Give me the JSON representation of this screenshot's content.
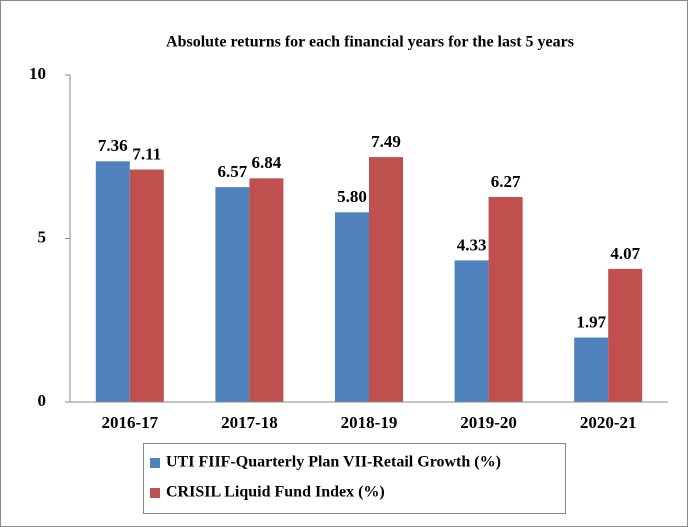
{
  "chart_data": {
    "type": "bar",
    "title": "Absolute returns for each financial years for the last 5 years",
    "categories": [
      "2016-17",
      "2017-18",
      "2018-19",
      "2019-20",
      "2020-21"
    ],
    "series": [
      {
        "name": "UTI FIIF-Quarterly Plan VII-Retail Growth (%)",
        "color": "#4f81bd",
        "values": [
          7.36,
          6.57,
          5.8,
          4.33,
          1.97
        ],
        "value_labels": [
          "7.36",
          "6.57",
          "5.80",
          "4.33",
          "1.97"
        ]
      },
      {
        "name": "CRISIL Liquid Fund Index (%)",
        "color": "#c0504d",
        "values": [
          7.11,
          6.84,
          7.49,
          6.27,
          4.07
        ],
        "value_labels": [
          "7.11",
          "6.84",
          "7.49",
          "6.27",
          "4.07"
        ]
      }
    ],
    "ylim": [
      0,
      10
    ],
    "yticks": [
      0,
      5,
      10
    ],
    "grid": false
  }
}
